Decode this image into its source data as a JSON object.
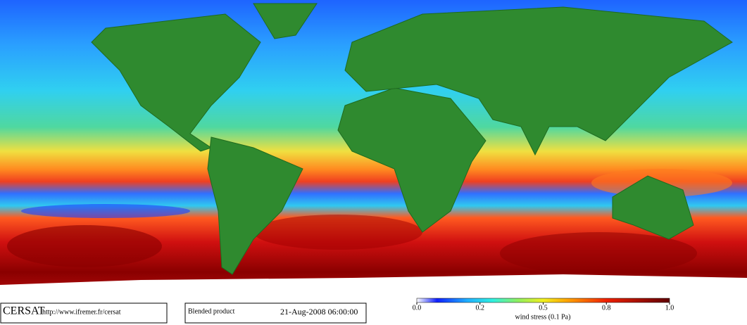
{
  "logo": "CERSAT",
  "url": "http://www.ifremer.fr/cersat",
  "product": "Blended product",
  "timestamp": "21-Aug-2008 06:00:00",
  "colorbar": {
    "label": "wind stress (0.1 Pa)",
    "ticks": [
      {
        "value": 0,
        "label": "0.0"
      },
      0.2,
      0.5,
      0.8,
      {
        "value": 1,
        "label": "1.0"
      }
    ]
  }
}
